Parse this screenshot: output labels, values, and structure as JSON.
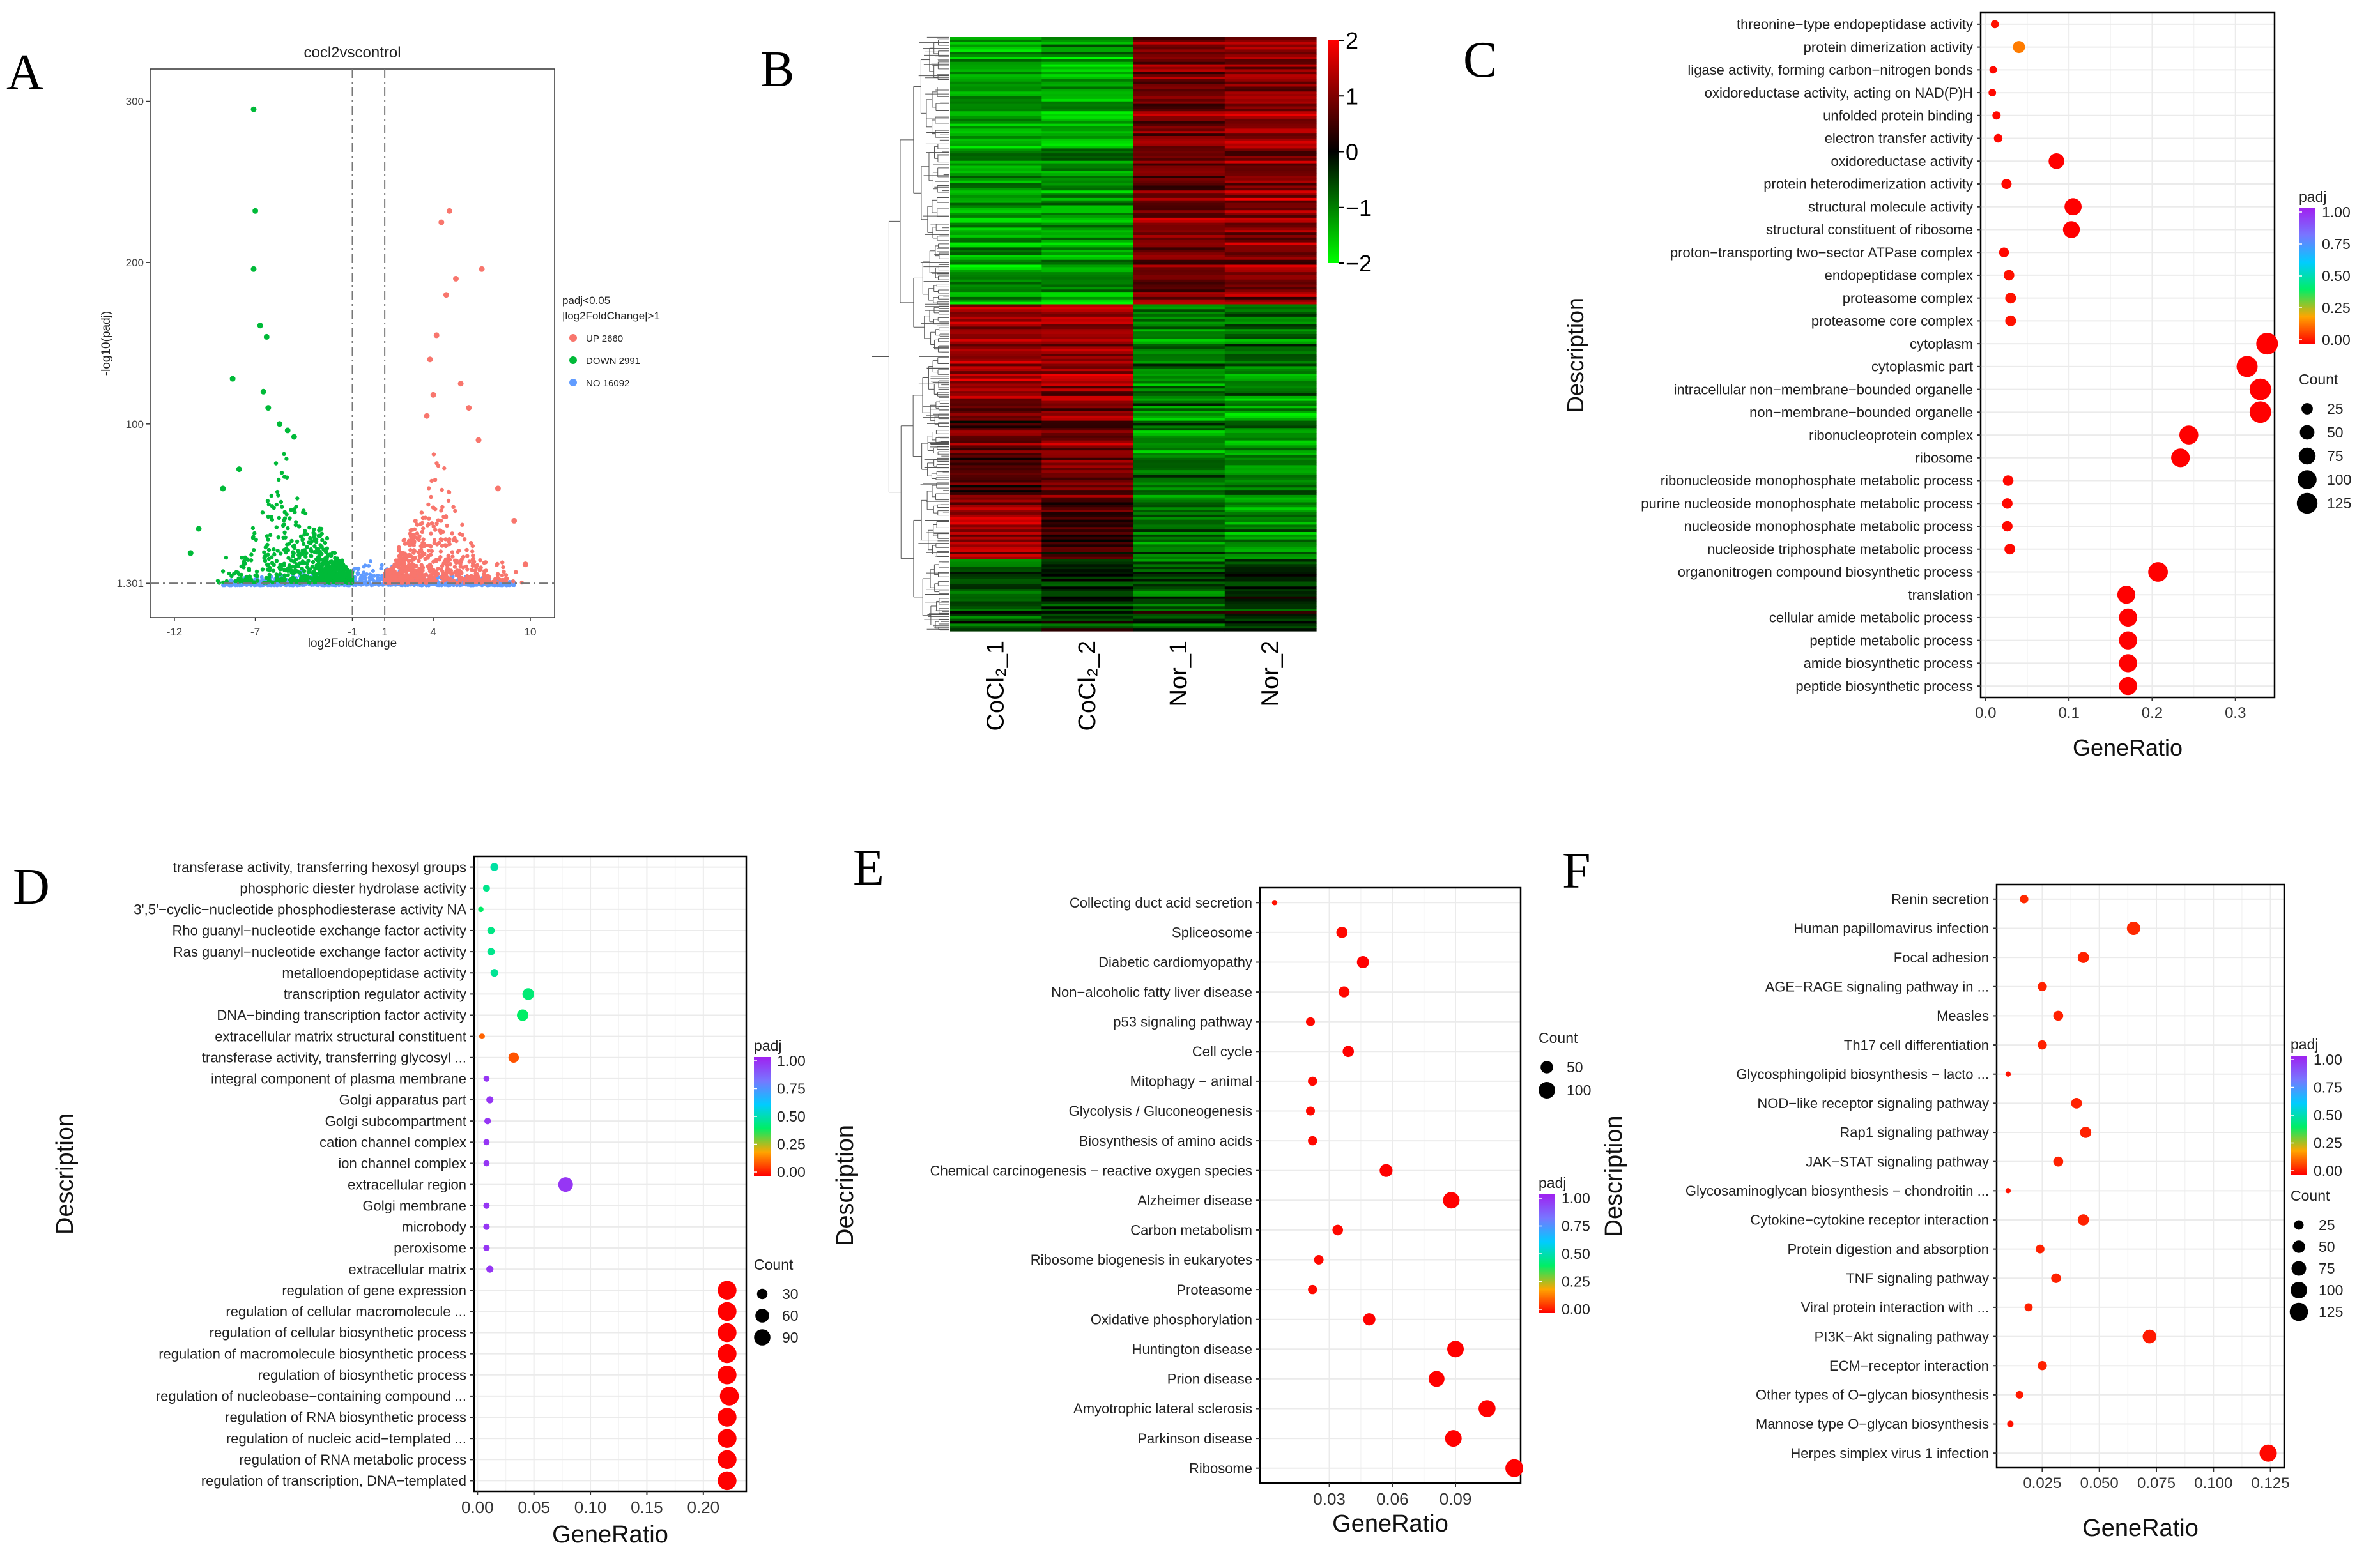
{
  "chart_data": [
    {
      "panel": "A",
      "type": "scatter",
      "title": "cocl2vscontrol",
      "xlabel": "log2FoldChange",
      "ylabel": "-log10(padj)",
      "xticks": [
        -12,
        -7,
        -1,
        1,
        4,
        10
      ],
      "yticks": [
        1.301,
        100,
        200,
        300
      ],
      "xlim": [
        -13.5,
        11.5
      ],
      "ylim": [
        -20,
        320
      ],
      "vlines": [
        -1,
        1
      ],
      "hline": 1.301,
      "legend_title": [
        "padj<0.05",
        "|log2FoldChange|>1"
      ],
      "legend": [
        {
          "label": "UP 2660",
          "color": "#f8766d"
        },
        {
          "label": "DOWN 2991",
          "color": "#00ba38"
        },
        {
          "label": "NO 16092",
          "color": "#619cff"
        }
      ],
      "highlight_points": {
        "down": [
          [
            -7.1,
            295
          ],
          [
            -7.0,
            232
          ],
          [
            -7.1,
            196
          ],
          [
            -6.7,
            161
          ],
          [
            -6.3,
            154
          ],
          [
            -8.4,
            128
          ],
          [
            -6.5,
            120
          ],
          [
            -6.2,
            110
          ],
          [
            -5.5,
            100
          ],
          [
            -5.0,
            96
          ],
          [
            -4.6,
            92
          ],
          [
            -8.0,
            72
          ],
          [
            -9.0,
            60
          ],
          [
            -10.5,
            35
          ],
          [
            -11.0,
            20
          ]
        ],
        "up": [
          [
            5.0,
            232
          ],
          [
            4.5,
            225
          ],
          [
            7.0,
            196
          ],
          [
            5.4,
            190
          ],
          [
            4.8,
            180
          ],
          [
            4.2,
            155
          ],
          [
            3.8,
            140
          ],
          [
            5.7,
            125
          ],
          [
            6.2,
            110
          ],
          [
            4.0,
            118
          ],
          [
            3.6,
            105
          ],
          [
            6.8,
            90
          ],
          [
            8.0,
            60
          ],
          [
            9.0,
            40
          ],
          [
            9.7,
            13
          ]
        ]
      }
    },
    {
      "panel": "B",
      "type": "heatmap",
      "columns": [
        "CoCl₂_1",
        "CoCl₂_2",
        "Nor_1",
        "Nor_2"
      ],
      "colorbar_ticks": [
        "2",
        "1",
        "0",
        "−1",
        "−2"
      ],
      "colorbar_range": [
        -2,
        2
      ],
      "colors": {
        "low": "#00ff00",
        "mid": "#000000",
        "high": "#ff0000"
      },
      "blocks": [
        {
          "from": 0.0,
          "to": 0.45,
          "values": [
            -1.3,
            -1.3,
            0.9,
            1.1
          ]
        },
        {
          "from": 0.45,
          "to": 0.61,
          "values": [
            1.2,
            1.1,
            -0.9,
            -0.9
          ]
        },
        {
          "from": 0.61,
          "to": 0.78,
          "values": [
            0.7,
            1.0,
            -1.0,
            -1.2
          ]
        },
        {
          "from": 0.78,
          "to": 0.88,
          "values": [
            1.2,
            0.4,
            -0.8,
            -1.0
          ]
        },
        {
          "from": 0.88,
          "to": 1.0,
          "values": [
            -0.6,
            -0.3,
            -0.5,
            -0.2
          ]
        }
      ]
    },
    {
      "panel": "C",
      "type": "scatter",
      "xlabel": "GeneRatio",
      "ylabel": "Description",
      "xlim": [
        -0.006,
        0.347
      ],
      "xticks": [
        0.0,
        0.1,
        0.2,
        0.3
      ],
      "xtick_labels": [
        "0.0",
        "0.1",
        "0.2",
        "0.3"
      ],
      "padj_ticks": [
        "1.00",
        "0.75",
        "0.50",
        "0.25",
        "0.00"
      ],
      "count_ticks": [
        25,
        50,
        75,
        100,
        125
      ],
      "count_range": [
        0,
        140
      ],
      "terms": [
        "threonine−type endopeptidase activity",
        "protein dimerization activity",
        "ligase activity, forming carbon−nitrogen bonds",
        "oxidoreductase activity, acting on NAD(P)H",
        "unfolded protein binding",
        "electron transfer activity",
        "oxidoreductase activity",
        "protein heterodimerization activity",
        "structural molecule activity",
        "structural constituent of ribosome",
        "proton−transporting two−sector ATPase complex",
        "endopeptidase complex",
        "proteasome complex",
        "proteasome core complex",
        "cytoplasm",
        "cytoplasmic part",
        "intracellular non−membrane−bounded organelle",
        "non−membrane−bounded organelle",
        "ribonucleoprotein complex",
        "ribosome",
        "ribonucleoside monophosphate metabolic process",
        "purine nucleoside monophosphate metabolic process",
        "nucleoside monophosphate metabolic process",
        "nucleoside triphosphate metabolic process",
        "organonitrogen compound biosynthetic process",
        "translation",
        "cellular amide metabolic process",
        "peptide metabolic process",
        "amide biosynthetic process",
        "peptide biosynthetic process"
      ],
      "gene_ratio": [
        0.011,
        0.04,
        0.009,
        0.008,
        0.013,
        0.015,
        0.085,
        0.025,
        0.105,
        0.103,
        0.022,
        0.028,
        0.03,
        0.03,
        0.338,
        0.314,
        0.33,
        0.33,
        0.244,
        0.234,
        0.027,
        0.026,
        0.026,
        0.029,
        0.207,
        0.169,
        0.171,
        0.171,
        0.171,
        0.171
      ],
      "count": [
        8,
        30,
        6,
        6,
        9,
        10,
        62,
        18,
        77,
        75,
        16,
        20,
        22,
        22,
        140,
        130,
        138,
        138,
        100,
        96,
        20,
        19,
        19,
        21,
        110,
        88,
        90,
        90,
        90,
        90
      ],
      "padj": [
        0.02,
        0.15,
        0.01,
        0.01,
        0.01,
        0.01,
        0.0,
        0.01,
        0.0,
        0.0,
        0.01,
        0.02,
        0.02,
        0.02,
        0.0,
        0.0,
        0.0,
        0.0,
        0.0,
        0.0,
        0.01,
        0.01,
        0.01,
        0.01,
        0.0,
        0.0,
        0.0,
        0.0,
        0.0,
        0.0
      ]
    },
    {
      "panel": "D",
      "type": "scatter",
      "xlabel": "GeneRatio",
      "ylabel": "Description",
      "xlim": [
        -0.003,
        0.238
      ],
      "xticks": [
        0.0,
        0.05,
        0.1,
        0.15,
        0.2
      ],
      "xtick_labels": [
        "0.00",
        "0.05",
        "0.10",
        "0.15",
        "0.20"
      ],
      "padj_ticks": [
        "1.00",
        "0.75",
        "0.50",
        "0.25",
        "0.00"
      ],
      "count_ticks": [
        30,
        60,
        90
      ],
      "count_range": [
        0,
        130
      ],
      "terms": [
        "transferase activity, transferring hexosyl groups",
        "phosphoric diester hydrolase activity",
        "3',5'−cyclic−nucleotide phosphodiesterase activity NA",
        "Rho guanyl−nucleotide exchange factor activity",
        "Ras guanyl−nucleotide exchange factor activity",
        "metalloendopeptidase activity",
        "transcription regulator activity",
        "DNA−binding transcription factor activity",
        "extracellular matrix structural constituent",
        "transferase activity, transferring glycosyl ...",
        "integral component of plasma membrane",
        "Golgi apparatus part",
        "Golgi subcompartment",
        "cation channel complex",
        "ion channel complex",
        "extracellular region",
        "Golgi membrane",
        "microbody",
        "peroxisome",
        "extracellular matrix",
        "regulation of gene expression",
        "regulation of cellular macromolecule ...",
        "regulation of cellular biosynthetic process",
        "regulation of macromolecule biosynthetic process",
        "regulation of biosynthetic process",
        "regulation of nucleobase−containing compound ...",
        "regulation of RNA biosynthetic process",
        "regulation of nucleic acid−templated ...",
        "regulation of RNA metabolic process",
        "regulation of transcription, DNA−templated"
      ],
      "gene_ratio": [
        0.015,
        0.008,
        0.003,
        0.012,
        0.012,
        0.015,
        0.045,
        0.04,
        0.004,
        0.032,
        0.008,
        0.011,
        0.009,
        0.008,
        0.008,
        0.078,
        0.008,
        0.008,
        0.008,
        0.011,
        0.221,
        0.221,
        0.221,
        0.221,
        0.221,
        0.223,
        0.221,
        0.221,
        0.221,
        0.221
      ],
      "count": [
        14,
        9,
        4,
        11,
        11,
        13,
        40,
        38,
        5,
        30,
        6,
        10,
        8,
        6,
        6,
        70,
        7,
        7,
        7,
        10,
        125,
        125,
        125,
        125,
        125,
        126,
        125,
        125,
        125,
        125
      ],
      "padj": [
        0.48,
        0.45,
        0.4,
        0.44,
        0.45,
        0.46,
        0.42,
        0.4,
        0.12,
        0.1,
        0.95,
        0.95,
        0.95,
        0.95,
        0.95,
        0.95,
        0.95,
        0.95,
        0.95,
        0.95,
        0.0,
        0.0,
        0.0,
        0.0,
        0.0,
        0.0,
        0.0,
        0.0,
        0.0,
        0.0
      ]
    },
    {
      "panel": "E",
      "type": "scatter",
      "xlabel": "GeneRatio",
      "ylabel": "Description",
      "xlim": [
        -0.003,
        0.121
      ],
      "xticks": [
        0.03,
        0.06,
        0.09
      ],
      "xtick_labels": [
        "0.03",
        "0.06",
        "0.09"
      ],
      "padj_ticks": [
        "1.00",
        "0.75",
        "0.50",
        "0.25",
        "0.00"
      ],
      "count_ticks": [
        50,
        100
      ],
      "count_range": [
        0,
        140
      ],
      "terms": [
        "Collecting duct acid secretion",
        "Spliceosome",
        "Diabetic cardiomyopathy",
        "Non−alcoholic fatty liver disease",
        "p53 signaling pathway",
        "Cell cycle",
        "Mitophagy − animal",
        "Glycolysis / Gluconeogenesis",
        "Biosynthesis of amino acids",
        "Chemical carcinogenesis − reactive oxygen species",
        "Alzheimer disease",
        "Carbon metabolism",
        "Ribosome biogenesis in eukaryotes",
        "Proteasome",
        "Oxidative phosphorylation",
        "Huntington disease",
        "Prion disease",
        "Amyotrophic lateral sclerosis",
        "Parkinson disease",
        "Ribosome"
      ],
      "gene_ratio": [
        0.004,
        0.036,
        0.046,
        0.037,
        0.021,
        0.039,
        0.022,
        0.021,
        0.022,
        0.057,
        0.088,
        0.034,
        0.025,
        0.022,
        0.049,
        0.09,
        0.081,
        0.105,
        0.089,
        0.118
      ],
      "count": [
        4,
        38,
        46,
        36,
        21,
        38,
        22,
        21,
        22,
        55,
        100,
        33,
        25,
        22,
        48,
        100,
        90,
        105,
        100,
        120
      ],
      "padj": [
        0.02,
        0.01,
        0.0,
        0.01,
        0.01,
        0.0,
        0.01,
        0.01,
        0.01,
        0.0,
        0.0,
        0.01,
        0.01,
        0.01,
        0.0,
        0.0,
        0.0,
        0.0,
        0.0,
        0.0
      ]
    },
    {
      "panel": "F",
      "type": "scatter",
      "xlabel": "GeneRatio",
      "ylabel": "Description",
      "xlim": [
        0.005,
        0.131
      ],
      "xticks": [
        0.025,
        0.05,
        0.075,
        0.1,
        0.125
      ],
      "xtick_labels": [
        "0.025",
        "0.050",
        "0.075",
        "0.100",
        "0.125"
      ],
      "padj_ticks": [
        "1.00",
        "0.75",
        "0.50",
        "0.25",
        "0.00"
      ],
      "count_ticks": [
        25,
        50,
        75,
        100,
        125
      ],
      "count_range": [
        0,
        140
      ],
      "terms": [
        "Renin secretion",
        "Human papillomavirus infection",
        "Focal adhesion",
        "AGE−RAGE signaling pathway in ...",
        "Measles",
        "Th17 cell differentiation",
        "Glycosphingolipid biosynthesis − lacto ...",
        "NOD−like receptor signaling pathway",
        "Rap1 signaling pathway",
        "JAK−STAT signaling pathway",
        "Glycosaminoglycan biosynthesis − chondroitin ...",
        "Cytokine−cytokine receptor interaction",
        "Protein digestion and absorption",
        "TNF signaling pathway",
        "Viral protein interaction with ...",
        "PI3K−Akt signaling pathway",
        "ECM−receptor interaction",
        "Other types of O−glycan biosynthesis",
        "Mannose type O−glycan biosynthesis",
        "Herpes simplex virus 1 infection"
      ],
      "gene_ratio": [
        0.017,
        0.065,
        0.043,
        0.025,
        0.032,
        0.025,
        0.01,
        0.04,
        0.044,
        0.032,
        0.01,
        0.043,
        0.024,
        0.031,
        0.019,
        0.072,
        0.025,
        0.015,
        0.011,
        0.124
      ],
      "count": [
        18,
        60,
        38,
        22,
        28,
        22,
        4,
        34,
        38,
        28,
        4,
        38,
        20,
        26,
        16,
        64,
        22,
        13,
        8,
        110
      ],
      "padj": [
        0.05,
        0.05,
        0.04,
        0.04,
        0.04,
        0.04,
        0.02,
        0.04,
        0.04,
        0.04,
        0.02,
        0.04,
        0.04,
        0.04,
        0.04,
        0.03,
        0.04,
        0.03,
        0.02,
        0.01
      ]
    }
  ],
  "panel_letters": [
    "A",
    "B",
    "C",
    "D",
    "E",
    "F"
  ],
  "colors": {
    "padj_scale": [
      "#ff0000",
      "#ffa500",
      "#00ee66",
      "#00ccff",
      "#7777ff",
      "#a020f0"
    ],
    "grid": "#ebebeb",
    "panel_border": "#000000"
  }
}
